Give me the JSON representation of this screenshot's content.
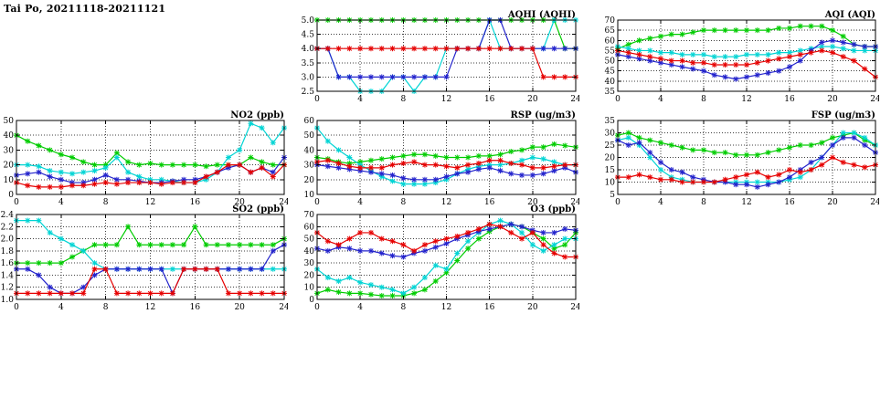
{
  "title": "Tai Po, 20211118-20211121",
  "colors": {
    "red": "#e60000",
    "green": "#00cc00",
    "blue": "#2323cc",
    "cyan": "#00d4d4"
  },
  "chart_data": [
    {
      "id": "aqhi",
      "type": "line",
      "title": "AQHI (AQHI)",
      "xlabel": "",
      "ylabel": "",
      "xlim": [
        0,
        24
      ],
      "xticks": [
        0,
        4,
        8,
        12,
        16,
        20,
        24
      ],
      "ylim": [
        2.5,
        5.0
      ],
      "yticks": [
        2.5,
        3.0,
        3.5,
        4.0,
        4.5,
        5.0
      ],
      "ydecimals": 1,
      "x_step": 1,
      "grid": true,
      "legend": "none",
      "series": [
        {
          "name": "green",
          "color": "green",
          "values": [
            5,
            5,
            5,
            5,
            5,
            5,
            5,
            5,
            5,
            5,
            5,
            5,
            5,
            5,
            5,
            5,
            5,
            5,
            5,
            5,
            5,
            5,
            5,
            4,
            4
          ]
        },
        {
          "name": "cyan",
          "color": "cyan",
          "values": [
            4,
            4,
            3,
            3,
            2.5,
            2.5,
            2.5,
            3,
            3,
            2.5,
            3,
            3,
            4,
            4,
            4,
            4,
            5,
            4,
            4,
            4,
            4,
            4,
            5,
            5,
            5
          ]
        },
        {
          "name": "blue",
          "color": "blue",
          "values": [
            4,
            4,
            3,
            3,
            3,
            3,
            3,
            3,
            3,
            3,
            3,
            3,
            3,
            4,
            4,
            4,
            5,
            5,
            4,
            4,
            4,
            4,
            4,
            4,
            4
          ]
        },
        {
          "name": "red",
          "color": "red",
          "values": [
            4,
            4,
            4,
            4,
            4,
            4,
            4,
            4,
            4,
            4,
            4,
            4,
            4,
            4,
            4,
            4,
            4,
            4,
            4,
            4,
            4,
            3,
            3,
            3,
            3
          ]
        }
      ]
    },
    {
      "id": "aqi",
      "type": "line",
      "title": "AQI (AQI)",
      "xlabel": "",
      "ylabel": "",
      "xlim": [
        0,
        24
      ],
      "xticks": [
        0,
        4,
        8,
        12,
        16,
        20,
        24
      ],
      "ylim": [
        35,
        70
      ],
      "yticks": [
        35,
        40,
        45,
        50,
        55,
        60,
        65,
        70
      ],
      "ydecimals": 0,
      "x_step": 1,
      "grid": true,
      "legend": "none",
      "series": [
        {
          "name": "green",
          "color": "green",
          "values": [
            56,
            58,
            60,
            61,
            62,
            63,
            63,
            64,
            65,
            65,
            65,
            65,
            65,
            65,
            65,
            66,
            66,
            67,
            67,
            67,
            65,
            62,
            58,
            57,
            57
          ]
        },
        {
          "name": "cyan",
          "color": "cyan",
          "values": [
            57,
            56,
            55,
            55,
            54,
            54,
            53,
            53,
            53,
            52,
            52,
            52,
            53,
            53,
            53,
            54,
            54,
            55,
            56,
            57,
            57,
            56,
            55,
            55,
            55
          ]
        },
        {
          "name": "blue",
          "color": "blue",
          "values": [
            53,
            52,
            51,
            50,
            49,
            48,
            47,
            46,
            45,
            43,
            42,
            41,
            42,
            43,
            44,
            45,
            47,
            50,
            55,
            59,
            60,
            59,
            58,
            57,
            57
          ]
        },
        {
          "name": "red",
          "color": "red",
          "values": [
            55,
            54,
            53,
            52,
            51,
            50,
            50,
            49,
            49,
            48,
            48,
            48,
            48,
            49,
            50,
            51,
            52,
            53,
            54,
            55,
            54,
            52,
            50,
            46,
            42
          ]
        }
      ]
    },
    {
      "id": "no2",
      "type": "line",
      "title": "NO2 (ppb)",
      "xlabel": "",
      "ylabel": "",
      "xlim": [
        0,
        24
      ],
      "xticks": [
        0,
        4,
        8,
        12,
        16,
        20,
        24
      ],
      "ylim": [
        0,
        50
      ],
      "yticks": [
        0,
        10,
        20,
        30,
        40,
        50
      ],
      "ydecimals": 0,
      "x_step": 1,
      "grid": true,
      "legend": "none",
      "series": [
        {
          "name": "green",
          "color": "green",
          "values": [
            40,
            36,
            33,
            30,
            27,
            25,
            22,
            20,
            20,
            28,
            22,
            20,
            21,
            20,
            20,
            20,
            20,
            19,
            20,
            20,
            20,
            25,
            22,
            20,
            20
          ]
        },
        {
          "name": "cyan",
          "color": "cyan",
          "values": [
            20,
            20,
            19,
            16,
            15,
            14,
            15,
            16,
            18,
            25,
            15,
            12,
            10,
            10,
            9,
            8,
            8,
            10,
            15,
            25,
            30,
            48,
            45,
            35,
            45
          ]
        },
        {
          "name": "blue",
          "color": "blue",
          "values": [
            13,
            14,
            15,
            12,
            10,
            8,
            8,
            10,
            13,
            10,
            10,
            9,
            8,
            8,
            9,
            10,
            10,
            12,
            15,
            18,
            20,
            15,
            18,
            15,
            25
          ]
        },
        {
          "name": "red",
          "color": "red",
          "values": [
            8,
            6,
            5,
            5,
            5,
            6,
            6,
            7,
            8,
            7,
            8,
            8,
            8,
            7,
            8,
            8,
            8,
            12,
            15,
            20,
            20,
            15,
            18,
            12,
            20
          ]
        }
      ]
    },
    {
      "id": "rsp",
      "type": "line",
      "title": "RSP (ug/m3)",
      "xlabel": "",
      "ylabel": "",
      "xlim": [
        0,
        24
      ],
      "xticks": [
        0,
        4,
        8,
        12,
        16,
        20,
        24
      ],
      "ylim": [
        10,
        60
      ],
      "yticks": [
        10,
        20,
        30,
        40,
        50,
        60
      ],
      "ydecimals": 0,
      "x_step": 1,
      "grid": true,
      "legend": "none",
      "series": [
        {
          "name": "green",
          "color": "green",
          "values": [
            35,
            34,
            32,
            31,
            32,
            33,
            34,
            35,
            36,
            37,
            37,
            36,
            35,
            35,
            35,
            36,
            36,
            37,
            39,
            40,
            42,
            42,
            44,
            43,
            42
          ]
        },
        {
          "name": "cyan",
          "color": "cyan",
          "values": [
            55,
            46,
            40,
            35,
            30,
            26,
            22,
            19,
            17,
            17,
            17,
            18,
            20,
            24,
            27,
            29,
            30,
            30,
            31,
            33,
            35,
            34,
            32,
            30,
            30
          ]
        },
        {
          "name": "blue",
          "color": "blue",
          "values": [
            30,
            29,
            28,
            27,
            26,
            25,
            24,
            23,
            21,
            20,
            20,
            20,
            22,
            24,
            25,
            27,
            28,
            26,
            24,
            23,
            23,
            24,
            26,
            28,
            25
          ]
        },
        {
          "name": "red",
          "color": "red",
          "values": [
            32,
            33,
            31,
            29,
            28,
            28,
            28,
            30,
            31,
            32,
            30,
            30,
            29,
            28,
            30,
            31,
            33,
            33,
            31,
            30,
            28,
            28,
            29,
            30,
            30
          ]
        }
      ]
    },
    {
      "id": "fsp",
      "type": "line",
      "title": "FSP (ug/m3)",
      "xlabel": "",
      "ylabel": "",
      "xlim": [
        0,
        24
      ],
      "xticks": [
        0,
        4,
        8,
        12,
        16,
        20,
        24
      ],
      "ylim": [
        5,
        35
      ],
      "yticks": [
        5,
        10,
        15,
        20,
        25,
        30,
        35
      ],
      "ydecimals": 0,
      "x_step": 1,
      "grid": true,
      "legend": "none",
      "series": [
        {
          "name": "green",
          "color": "green",
          "values": [
            29,
            30,
            28,
            27,
            26,
            25,
            24,
            23,
            23,
            22,
            22,
            21,
            21,
            21,
            22,
            23,
            24,
            25,
            25,
            26,
            28,
            29,
            30,
            27,
            25
          ]
        },
        {
          "name": "cyan",
          "color": "cyan",
          "values": [
            27,
            28,
            25,
            20,
            15,
            12,
            11,
            10,
            10,
            10,
            10,
            10,
            10,
            10,
            10,
            10,
            11,
            12,
            15,
            20,
            25,
            30,
            30,
            28,
            25
          ]
        },
        {
          "name": "blue",
          "color": "blue",
          "values": [
            27,
            25,
            26,
            22,
            18,
            15,
            14,
            12,
            11,
            10,
            10,
            9,
            9,
            8,
            9,
            10,
            12,
            15,
            18,
            20,
            25,
            28,
            28,
            25,
            22
          ]
        },
        {
          "name": "red",
          "color": "red",
          "values": [
            12,
            12,
            13,
            12,
            11,
            11,
            10,
            10,
            10,
            10,
            11,
            12,
            13,
            14,
            12,
            13,
            15,
            14,
            15,
            17,
            20,
            18,
            17,
            16,
            17
          ]
        }
      ]
    },
    {
      "id": "so2",
      "type": "line",
      "title": "SO2 (ppb)",
      "xlabel": "",
      "ylabel": "",
      "xlim": [
        0,
        24
      ],
      "xticks": [
        0,
        4,
        8,
        12,
        16,
        20,
        24
      ],
      "ylim": [
        1.0,
        2.4
      ],
      "yticks": [
        1.0,
        1.2,
        1.4,
        1.6,
        1.8,
        2.0,
        2.2,
        2.4
      ],
      "ydecimals": 1,
      "x_step": 1,
      "grid": true,
      "legend": "none",
      "series": [
        {
          "name": "green",
          "color": "green",
          "values": [
            1.6,
            1.6,
            1.6,
            1.6,
            1.6,
            1.7,
            1.8,
            1.9,
            1.9,
            1.9,
            2.2,
            1.9,
            1.9,
            1.9,
            1.9,
            1.9,
            2.2,
            1.9,
            1.9,
            1.9,
            1.9,
            1.9,
            1.9,
            1.9,
            2.0
          ]
        },
        {
          "name": "cyan",
          "color": "cyan",
          "values": [
            2.3,
            2.3,
            2.3,
            2.1,
            2.0,
            1.9,
            1.8,
            1.6,
            1.5,
            1.5,
            1.5,
            1.5,
            1.5,
            1.5,
            1.5,
            1.5,
            1.5,
            1.5,
            1.5,
            1.5,
            1.5,
            1.5,
            1.5,
            1.5,
            1.5
          ]
        },
        {
          "name": "blue",
          "color": "blue",
          "values": [
            1.5,
            1.5,
            1.4,
            1.2,
            1.1,
            1.1,
            1.2,
            1.4,
            1.5,
            1.5,
            1.5,
            1.5,
            1.5,
            1.5,
            1.1,
            1.5,
            1.5,
            1.5,
            1.5,
            1.5,
            1.5,
            1.5,
            1.5,
            1.8,
            1.9
          ]
        },
        {
          "name": "red",
          "color": "red",
          "values": [
            1.1,
            1.1,
            1.1,
            1.1,
            1.1,
            1.1,
            1.1,
            1.5,
            1.5,
            1.1,
            1.1,
            1.1,
            1.1,
            1.1,
            1.1,
            1.5,
            1.5,
            1.5,
            1.5,
            1.1,
            1.1,
            1.1,
            1.1,
            1.1,
            1.1
          ]
        }
      ]
    },
    {
      "id": "o3",
      "type": "line",
      "title": "O3 (ppb)",
      "xlabel": "",
      "ylabel": "",
      "xlim": [
        0,
        24
      ],
      "xticks": [
        0,
        4,
        8,
        12,
        16,
        20,
        24
      ],
      "ylim": [
        0,
        70
      ],
      "yticks": [
        0,
        10,
        20,
        30,
        40,
        50,
        60,
        70
      ],
      "ydecimals": 0,
      "x_step": 1,
      "grid": true,
      "legend": "none",
      "series": [
        {
          "name": "green",
          "color": "green",
          "values": [
            5,
            8,
            6,
            5,
            5,
            4,
            3,
            3,
            3,
            5,
            8,
            15,
            22,
            32,
            42,
            50,
            56,
            60,
            62,
            60,
            55,
            50,
            42,
            45,
            55
          ]
        },
        {
          "name": "cyan",
          "color": "cyan",
          "values": [
            25,
            18,
            15,
            18,
            14,
            12,
            10,
            8,
            5,
            10,
            18,
            28,
            25,
            38,
            48,
            55,
            62,
            65,
            62,
            55,
            45,
            40,
            45,
            50,
            50
          ]
        },
        {
          "name": "blue",
          "color": "blue",
          "values": [
            42,
            40,
            43,
            42,
            40,
            40,
            38,
            36,
            35,
            38,
            40,
            43,
            46,
            50,
            53,
            56,
            58,
            60,
            62,
            60,
            57,
            55,
            55,
            58,
            57
          ]
        },
        {
          "name": "red",
          "color": "red",
          "values": [
            55,
            48,
            45,
            50,
            55,
            55,
            50,
            48,
            45,
            40,
            45,
            48,
            50,
            52,
            55,
            58,
            62,
            60,
            55,
            50,
            55,
            45,
            38,
            35,
            35
          ]
        }
      ]
    }
  ]
}
